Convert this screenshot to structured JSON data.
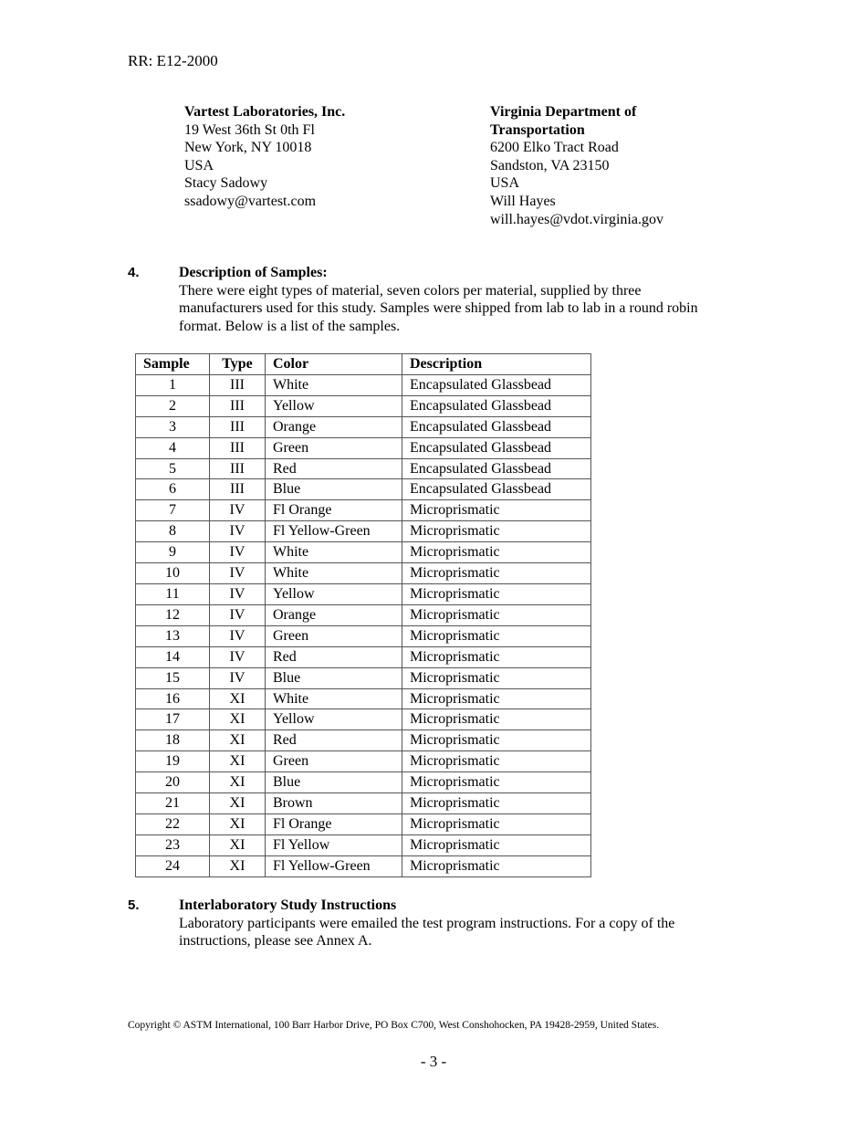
{
  "header": {
    "title": "RR: E12-2000"
  },
  "addresses": [
    {
      "name": "Vartest Laboratories, Inc.",
      "lines": [
        "19 West 36th St 0th Fl",
        "New York, NY 10018",
        "USA",
        "Stacy Sadowy",
        "ssadowy@vartest.com"
      ]
    },
    {
      "name_lines": [
        "Virginia Department of",
        "Transportation"
      ],
      "lines": [
        "6200 Elko Tract Road",
        "Sandston, VA 23150",
        "USA",
        "Will Hayes",
        "will.hayes@vdot.virginia.gov"
      ]
    }
  ],
  "section4": {
    "number": "4.",
    "title": "Description of Samples:",
    "lines": [
      "There were eight types of material, seven colors per material, supplied by three",
      "manufacturers used for this study.  Samples were shipped from lab to lab in a round robin",
      "format. Below is a list of the samples."
    ]
  },
  "table": {
    "headers": [
      "Sample",
      "Type",
      "Color",
      "Description"
    ],
    "rows": [
      [
        "1",
        "III",
        "White",
        "Encapsulated Glassbead"
      ],
      [
        "2",
        "III",
        "Yellow",
        "Encapsulated Glassbead"
      ],
      [
        "3",
        "III",
        "Orange",
        "Encapsulated Glassbead"
      ],
      [
        "4",
        "III",
        "Green",
        "Encapsulated Glassbead"
      ],
      [
        "5",
        "III",
        "Red",
        "Encapsulated Glassbead"
      ],
      [
        "6",
        "III",
        "Blue",
        "Encapsulated Glassbead"
      ],
      [
        "7",
        "IV",
        "Fl Orange",
        "Microprismatic"
      ],
      [
        "8",
        "IV",
        "Fl Yellow-Green",
        "Microprismatic"
      ],
      [
        "9",
        "IV",
        "White",
        "Microprismatic"
      ],
      [
        "10",
        "IV",
        "White",
        "Microprismatic"
      ],
      [
        "11",
        "IV",
        "Yellow",
        "Microprismatic"
      ],
      [
        "12",
        "IV",
        "Orange",
        "Microprismatic"
      ],
      [
        "13",
        "IV",
        "Green",
        "Microprismatic"
      ],
      [
        "14",
        "IV",
        "Red",
        "Microprismatic"
      ],
      [
        "15",
        "IV",
        "Blue",
        "Microprismatic"
      ],
      [
        "16",
        "XI",
        "White",
        "Microprismatic"
      ],
      [
        "17",
        "XI",
        "Yellow",
        "Microprismatic"
      ],
      [
        "18",
        "XI",
        "Red",
        "Microprismatic"
      ],
      [
        "19",
        "XI",
        "Green",
        "Microprismatic"
      ],
      [
        "20",
        "XI",
        "Blue",
        "Microprismatic"
      ],
      [
        "21",
        "XI",
        "Brown",
        "Microprismatic"
      ],
      [
        "22",
        "XI",
        "Fl Orange",
        "Microprismatic"
      ],
      [
        "23",
        "XI",
        "Fl Yellow",
        "Microprismatic"
      ],
      [
        "24",
        "XI",
        "Fl Yellow-Green",
        "Microprismatic"
      ]
    ]
  },
  "section5": {
    "number": "5.",
    "title": "Interlaboratory Study Instructions",
    "lines": [
      "Laboratory participants were emailed the test program instructions.  For a copy of the",
      "instructions, please see Annex A."
    ]
  },
  "footer": {
    "copyright": "Copyright © ASTM International, 100 Barr Harbor Drive, PO Box C700, West Conshohocken, PA 19428-2959, United States.",
    "page": "- 3 -"
  }
}
